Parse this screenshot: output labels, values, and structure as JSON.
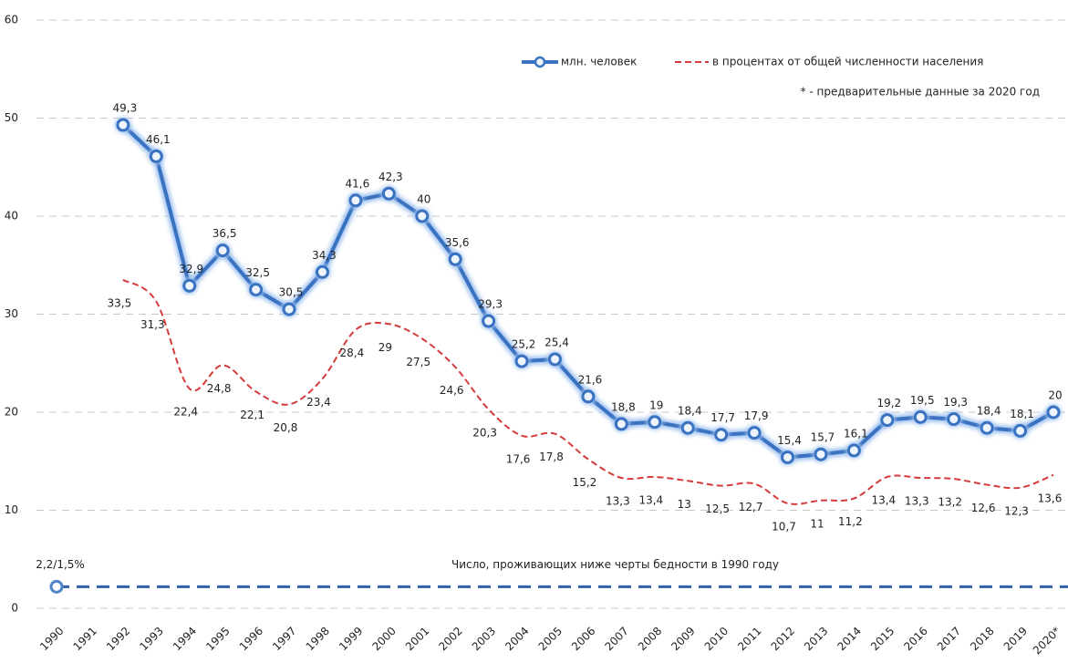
{
  "chart_data": {
    "type": "line",
    "categories": [
      "1990",
      "1991",
      "1992",
      "1993",
      "1994",
      "1995",
      "1996",
      "1997",
      "1998",
      "1999",
      "2000",
      "2001",
      "2002",
      "2003",
      "2004",
      "2005",
      "2006",
      "2007",
      "2008",
      "2009",
      "2010",
      "2011",
      "2012",
      "2013",
      "2014",
      "2015",
      "2016",
      "2017",
      "2018",
      "2019",
      "2020*"
    ],
    "series": [
      {
        "name": "млн. человек",
        "color": "#3a72c2",
        "values": [
          null,
          null,
          49.3,
          46.1,
          32.9,
          36.5,
          32.5,
          30.5,
          34.3,
          41.6,
          42.3,
          40,
          35.6,
          29.3,
          25.2,
          25.4,
          21.6,
          18.8,
          19,
          18.4,
          17.7,
          17.9,
          15.4,
          15.7,
          16.1,
          19.2,
          19.5,
          19.3,
          18.4,
          18.1,
          20
        ],
        "value_labels": [
          null,
          null,
          "49,3",
          "46,1",
          "32,9",
          "36,5",
          "32,5",
          "30,5",
          "34,3",
          "41,6",
          "42,3",
          "40",
          "35,6",
          "29,3",
          "25,2",
          "25,4",
          "21,6",
          "18,8",
          "19",
          "18,4",
          "17,7",
          "17,9",
          "15,4",
          "15,7",
          "16,1",
          "19,2",
          "19,5",
          "19,3",
          "18,4",
          "18,1",
          "20"
        ]
      },
      {
        "name": "в процентах от общей численности населения",
        "color": "#d63a3a",
        "values": [
          null,
          null,
          33.5,
          31.3,
          22.4,
          24.8,
          22.1,
          20.8,
          23.4,
          28.4,
          29,
          27.5,
          24.6,
          20.3,
          17.6,
          17.8,
          15.2,
          13.3,
          13.4,
          13,
          12.5,
          12.7,
          10.7,
          11,
          11.2,
          13.4,
          13.3,
          13.2,
          12.6,
          12.3,
          13.6
        ],
        "value_labels": [
          null,
          null,
          "33,5",
          "31,3",
          "22,4",
          "24,8",
          "22,1",
          "20,8",
          "23,4",
          "28,4",
          "29",
          "27,5",
          "24,6",
          "20,3",
          "17,6",
          "17,8",
          "15,2",
          "13,3",
          "13,4",
          "13",
          "12,5",
          "12,7",
          "10,7",
          "11",
          "11,2",
          "13,4",
          "13,3",
          "13,2",
          "12,6",
          "12,3",
          "13,6"
        ]
      }
    ],
    "reference": {
      "value": 2.2,
      "label": "2,2/1,5%",
      "text": "Число, проживающих ниже черты бедности в 1990 году",
      "color": "#2e5fa8"
    },
    "note": "* - предварительные данные за 2020 год",
    "ylim": [
      0,
      60
    ],
    "yticks": [
      0,
      10,
      20,
      30,
      40,
      50,
      60
    ],
    "grid": true
  }
}
